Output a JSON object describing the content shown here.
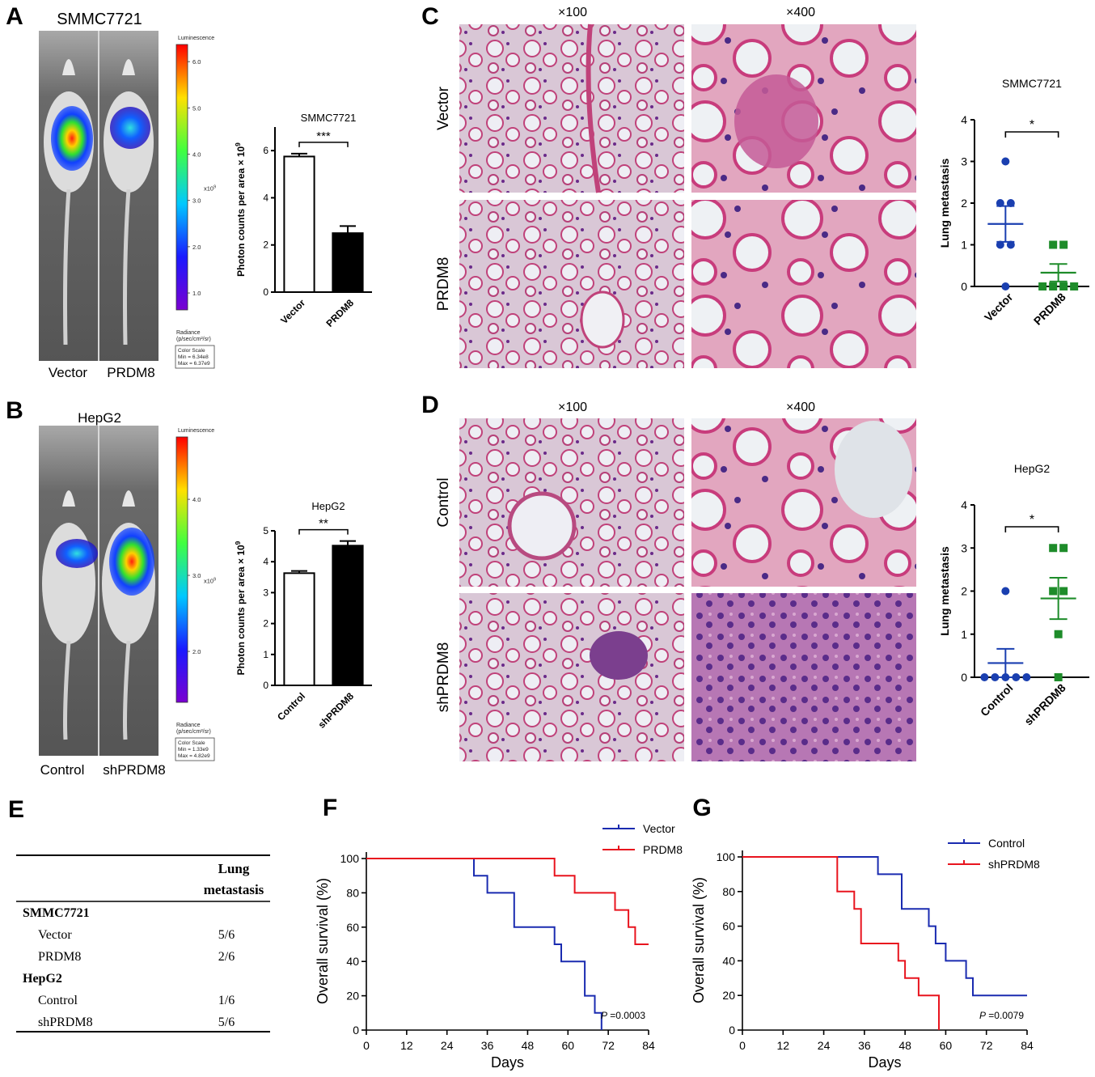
{
  "panels": {
    "A": {
      "letter": "A",
      "title": "SMMC7721",
      "group_labels": [
        "Vector",
        "PRDM8"
      ],
      "colorbar": {
        "header": "Luminescence",
        "ticks": [
          "6.0",
          "5.0",
          "4.0",
          "3.0",
          "2.0",
          "1.0"
        ],
        "tick_values": [
          6.0,
          5.0,
          4.0,
          3.0,
          2.0,
          1.0
        ],
        "range": [
          0.634,
          6.37
        ],
        "exponent_label": "x10",
        "exponent_power": "9",
        "radiance_label": "Radiance",
        "radiance_unit": "(p/sec/cm²/sr)",
        "scale_title": "Color Scale",
        "scale_min": "Min = 6.34e8",
        "scale_max": "Max = 6.37e9"
      }
    },
    "B": {
      "letter": "B",
      "title": "HepG2",
      "group_labels": [
        "Control",
        "shPRDM8"
      ],
      "colorbar": {
        "header": "Luminescence",
        "ticks": [
          "4.0",
          "3.0",
          "2.0"
        ],
        "tick_values": [
          4.0,
          3.0,
          2.0
        ],
        "range": [
          1.33,
          4.82
        ],
        "exponent_label": "x10",
        "exponent_power": "9",
        "radiance_label": "Radiance",
        "radiance_unit": "(p/sec/cm²/sr)",
        "scale_title": "Color Scale",
        "scale_min": "Min = 1.33e9",
        "scale_max": "Max = 4.82e9"
      }
    },
    "C": {
      "letter": "C",
      "magnifications": [
        "×100",
        "×400"
      ],
      "row_labels": [
        "Vector",
        "PRDM8"
      ]
    },
    "D": {
      "letter": "D",
      "magnifications": [
        "×100",
        "×400"
      ],
      "row_labels": [
        "Control",
        "shPRDM8"
      ]
    },
    "E": {
      "letter": "E",
      "table": {
        "header": [
          "Lung",
          "metastasis"
        ],
        "groups": [
          {
            "name": "SMMC7721",
            "rows": [
              {
                "label": "Vector",
                "value": "5/6"
              },
              {
                "label": "PRDM8",
                "value": "2/6"
              }
            ]
          },
          {
            "name": "HepG2",
            "rows": [
              {
                "label": "Control",
                "value": "1/6"
              },
              {
                "label": "shPRDM8",
                "value": "5/6"
              }
            ]
          }
        ]
      }
    },
    "F": {
      "letter": "F"
    },
    "G": {
      "letter": "G"
    }
  },
  "chart_data": [
    {
      "id": "A-bar",
      "type": "bar",
      "title": "SMMC7721",
      "ylabel": "Photon counts per area × 10",
      "ylabel_power": "9",
      "categories": [
        "Vector",
        "PRDM8"
      ],
      "values": [
        5.75,
        2.5
      ],
      "errors": [
        0.12,
        0.3
      ],
      "fills": [
        "#ffffff",
        "#000000"
      ],
      "ylim": [
        0,
        7
      ],
      "yticks": [
        0,
        2,
        4,
        6
      ],
      "significance": "***"
    },
    {
      "id": "B-bar",
      "type": "bar",
      "title": "HepG2",
      "ylabel": "Photon counts per area × 10",
      "ylabel_power": "9",
      "categories": [
        "Control",
        "shPRDM8"
      ],
      "values": [
        3.63,
        4.52
      ],
      "errors": [
        0.07,
        0.15
      ],
      "fills": [
        "#ffffff",
        "#000000"
      ],
      "ylim": [
        0,
        5
      ],
      "yticks": [
        0,
        1,
        2,
        3,
        4,
        5
      ],
      "significance": "**"
    },
    {
      "id": "C-scatter",
      "type": "scatter",
      "title": "SMMC7721",
      "ylabel": "Lung metastasis",
      "categories": [
        "Vector",
        "PRDM8"
      ],
      "series": [
        {
          "name": "Vector",
          "values": [
            3,
            2,
            2,
            1,
            1,
            0
          ],
          "mean": 1.5,
          "sem": 0.43,
          "color": "#1a3fb0",
          "marker": "circle"
        },
        {
          "name": "PRDM8",
          "values": [
            1,
            1,
            0,
            0,
            0,
            0
          ],
          "mean": 0.33,
          "sem": 0.21,
          "color": "#1e8c2a",
          "marker": "square"
        }
      ],
      "ylim": [
        0,
        4
      ],
      "yticks": [
        0,
        1,
        2,
        3,
        4
      ],
      "significance": "*"
    },
    {
      "id": "D-scatter",
      "type": "scatter",
      "title": "HepG2",
      "ylabel": "Lung metastasis",
      "categories": [
        "Control",
        "shPRDM8"
      ],
      "series": [
        {
          "name": "Control",
          "values": [
            2,
            0,
            0,
            0,
            0,
            0
          ],
          "mean": 0.33,
          "sem": 0.33,
          "color": "#1a3fb0",
          "marker": "circle"
        },
        {
          "name": "shPRDM8",
          "values": [
            3,
            3,
            2,
            2,
            1,
            0
          ],
          "mean": 1.83,
          "sem": 0.48,
          "color": "#1e8c2a",
          "marker": "square"
        }
      ],
      "ylim": [
        0,
        4
      ],
      "yticks": [
        0,
        1,
        2,
        3,
        4
      ],
      "significance": "*"
    },
    {
      "id": "F-survival",
      "type": "line",
      "xlabel": "Days",
      "ylabel": "Overall survival (%)",
      "xlim": [
        0,
        84
      ],
      "ylim": [
        0,
        100
      ],
      "xticks": [
        0,
        12,
        24,
        36,
        48,
        60,
        72,
        84
      ],
      "yticks": [
        0,
        20,
        40,
        60,
        80,
        100
      ],
      "legend_position": "top-right",
      "pvalue_label": "P",
      "pvalue": "=0.0003",
      "series": [
        {
          "name": "Vector",
          "color": "#1a2bb0",
          "x": [
            0,
            32,
            32,
            36,
            36,
            44,
            44,
            56,
            56,
            58,
            58,
            65,
            65,
            68,
            68,
            70,
            70
          ],
          "y": [
            100,
            100,
            90,
            90,
            80,
            80,
            60,
            60,
            50,
            50,
            40,
            40,
            20,
            20,
            10,
            10,
            0
          ]
        },
        {
          "name": "PRDM8",
          "color": "#e8141e",
          "x": [
            0,
            56,
            56,
            62,
            62,
            74,
            74,
            78,
            78,
            80,
            80,
            84
          ],
          "y": [
            100,
            100,
            90,
            90,
            80,
            80,
            70,
            70,
            60,
            60,
            50,
            50
          ]
        }
      ]
    },
    {
      "id": "G-survival",
      "type": "line",
      "xlabel": "Days",
      "ylabel": "Overall survival (%)",
      "xlim": [
        0,
        84
      ],
      "ylim": [
        0,
        100
      ],
      "xticks": [
        0,
        12,
        24,
        36,
        48,
        60,
        72,
        84
      ],
      "yticks": [
        0,
        20,
        40,
        60,
        80,
        100
      ],
      "legend_position": "top-right",
      "pvalue_label": "P",
      "pvalue": "=0.0079",
      "series": [
        {
          "name": "Control",
          "color": "#1a2bb0",
          "x": [
            0,
            40,
            40,
            47,
            47,
            55,
            55,
            57,
            57,
            60,
            60,
            66,
            66,
            68,
            68,
            84
          ],
          "y": [
            100,
            100,
            90,
            90,
            70,
            70,
            60,
            60,
            50,
            50,
            40,
            40,
            30,
            30,
            20,
            20
          ]
        },
        {
          "name": "shPRDM8",
          "color": "#e8141e",
          "x": [
            0,
            28,
            28,
            33,
            33,
            35,
            35,
            46,
            46,
            48,
            48,
            52,
            52,
            58,
            58
          ],
          "y": [
            100,
            100,
            80,
            80,
            70,
            70,
            50,
            50,
            40,
            40,
            30,
            30,
            20,
            20,
            0
          ]
        }
      ]
    }
  ]
}
